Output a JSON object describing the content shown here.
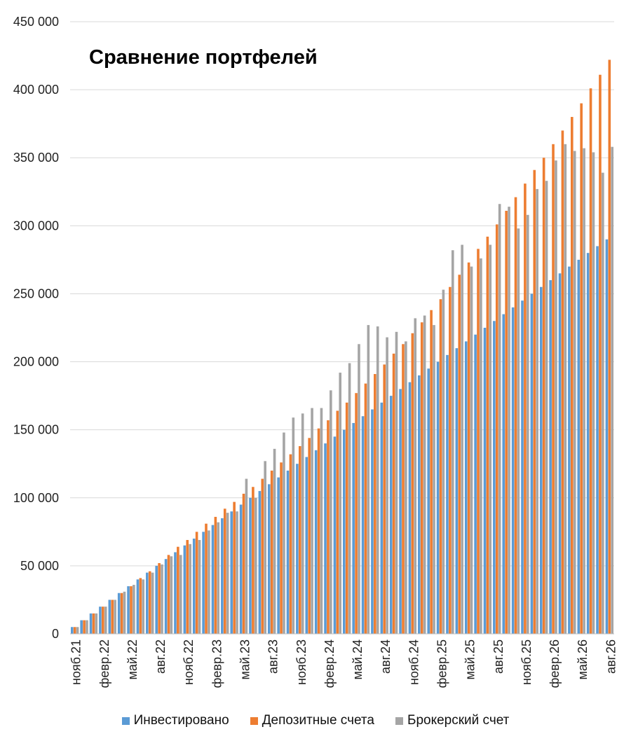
{
  "chart_data": {
    "type": "bar",
    "title": "Сравнение портфелей",
    "ylim": [
      0,
      450000
    ],
    "y_ticks": [
      0,
      50000,
      100000,
      150000,
      200000,
      250000,
      300000,
      350000,
      400000,
      450000
    ],
    "y_tick_labels": [
      "0",
      "50 000",
      "100 000",
      "150 000",
      "200 000",
      "250 000",
      "300 000",
      "350 000",
      "400 000",
      "450 000"
    ],
    "grid": true,
    "legend_position": "bottom",
    "x_tick_labels": [
      {
        "index": 0,
        "label": "нояб.21"
      },
      {
        "index": 3,
        "label": "февр.22"
      },
      {
        "index": 6,
        "label": "май.22"
      },
      {
        "index": 9,
        "label": "авг.22"
      },
      {
        "index": 12,
        "label": "нояб.22"
      },
      {
        "index": 15,
        "label": "февр.23"
      },
      {
        "index": 18,
        "label": "май.23"
      },
      {
        "index": 21,
        "label": "авг.23"
      },
      {
        "index": 24,
        "label": "нояб.23"
      },
      {
        "index": 27,
        "label": "февр.24"
      },
      {
        "index": 30,
        "label": "май.24"
      },
      {
        "index": 33,
        "label": "авг.24"
      },
      {
        "index": 36,
        "label": "нояб.24"
      },
      {
        "index": 39,
        "label": "февр.25"
      },
      {
        "index": 42,
        "label": "май.25"
      },
      {
        "index": 45,
        "label": "авг.25"
      },
      {
        "index": 48,
        "label": "нояб.25"
      },
      {
        "index": 51,
        "label": "февр.26"
      },
      {
        "index": 54,
        "label": "май.26"
      },
      {
        "index": 57,
        "label": "авг.26"
      }
    ],
    "series": [
      {
        "name": "Инвестировано",
        "color": "#5b9bd5",
        "values": [
          5000,
          10000,
          15000,
          20000,
          25000,
          30000,
          35000,
          40000,
          45000,
          50000,
          55000,
          60000,
          65000,
          70000,
          75000,
          80000,
          85000,
          90000,
          95000,
          100000,
          105000,
          110000,
          115000,
          120000,
          125000,
          130000,
          135000,
          140000,
          145000,
          150000,
          155000,
          160000,
          165000,
          170000,
          175000,
          180000,
          185000,
          190000,
          195000,
          200000,
          205000,
          210000,
          215000,
          220000,
          225000,
          230000,
          235000,
          240000,
          245000,
          250000,
          255000,
          260000,
          265000,
          270000,
          275000,
          280000,
          285000,
          290000
        ]
      },
      {
        "name": "Депозитные счета",
        "color": "#ed7d31",
        "values": [
          5000,
          10000,
          15000,
          20000,
          25000,
          30000,
          35000,
          41000,
          46000,
          52000,
          58000,
          64000,
          69000,
          75000,
          81000,
          86000,
          92000,
          97000,
          103000,
          108000,
          114000,
          120000,
          126000,
          132000,
          138000,
          144000,
          151000,
          157000,
          164000,
          170000,
          177000,
          184000,
          191000,
          198000,
          206000,
          213000,
          221000,
          229000,
          238000,
          246000,
          255000,
          264000,
          273000,
          283000,
          292000,
          301000,
          311000,
          321000,
          331000,
          341000,
          350000,
          360000,
          370000,
          380000,
          390000,
          401000,
          411000,
          422000
        ]
      },
      {
        "name": "Брокерский счет",
        "color": "#a5a5a5",
        "values": [
          5000,
          10000,
          15000,
          20000,
          25000,
          31000,
          36000,
          40000,
          45000,
          51000,
          57000,
          58000,
          66000,
          69000,
          76000,
          82000,
          89000,
          90000,
          114000,
          100000,
          127000,
          136000,
          148000,
          159000,
          162000,
          166000,
          166000,
          179000,
          192000,
          199000,
          213000,
          227000,
          226000,
          218000,
          222000,
          215000,
          232000,
          234000,
          227000,
          253000,
          282000,
          286000,
          270000,
          276000,
          286000,
          316000,
          314000,
          298000,
          308000,
          327000,
          333000,
          348000,
          360000,
          355000,
          357000,
          354000,
          339000,
          358000
        ]
      }
    ]
  }
}
